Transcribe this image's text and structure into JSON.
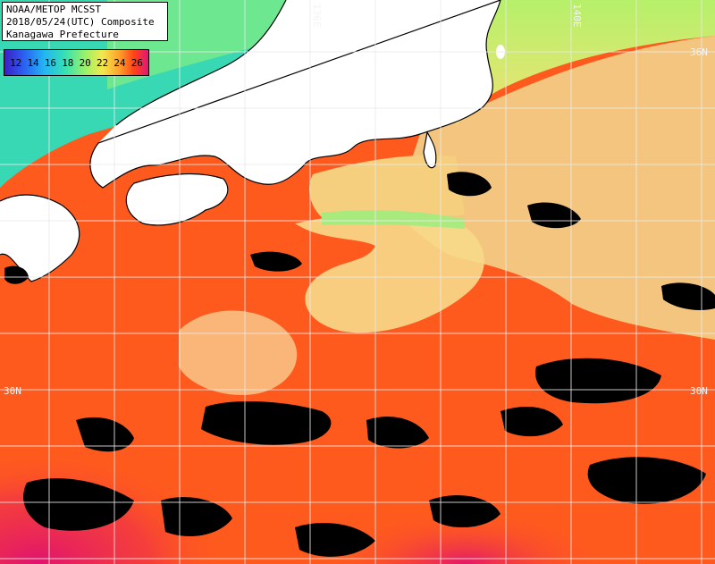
{
  "title": {
    "line1": "NOAA/METOP MCSST",
    "line2": "2018/05/24(UTC) Composite",
    "line3": "Kanagawa Prefecture"
  },
  "legend": {
    "values": [
      "12",
      "14",
      "16",
      "18",
      "20",
      "22",
      "24",
      "26"
    ]
  },
  "grid_labels": {
    "lat_36": "36N",
    "lat_30": "30N",
    "lon_136": "136E",
    "lon_140": "140E"
  },
  "colors": {
    "warm_sea": "#ff5a1e",
    "warm_current": "#f7d98a",
    "cool_coast": "#8ff07a",
    "hot_south": "#e81c6c",
    "land": "#ffffff",
    "cloud": "#000000"
  }
}
